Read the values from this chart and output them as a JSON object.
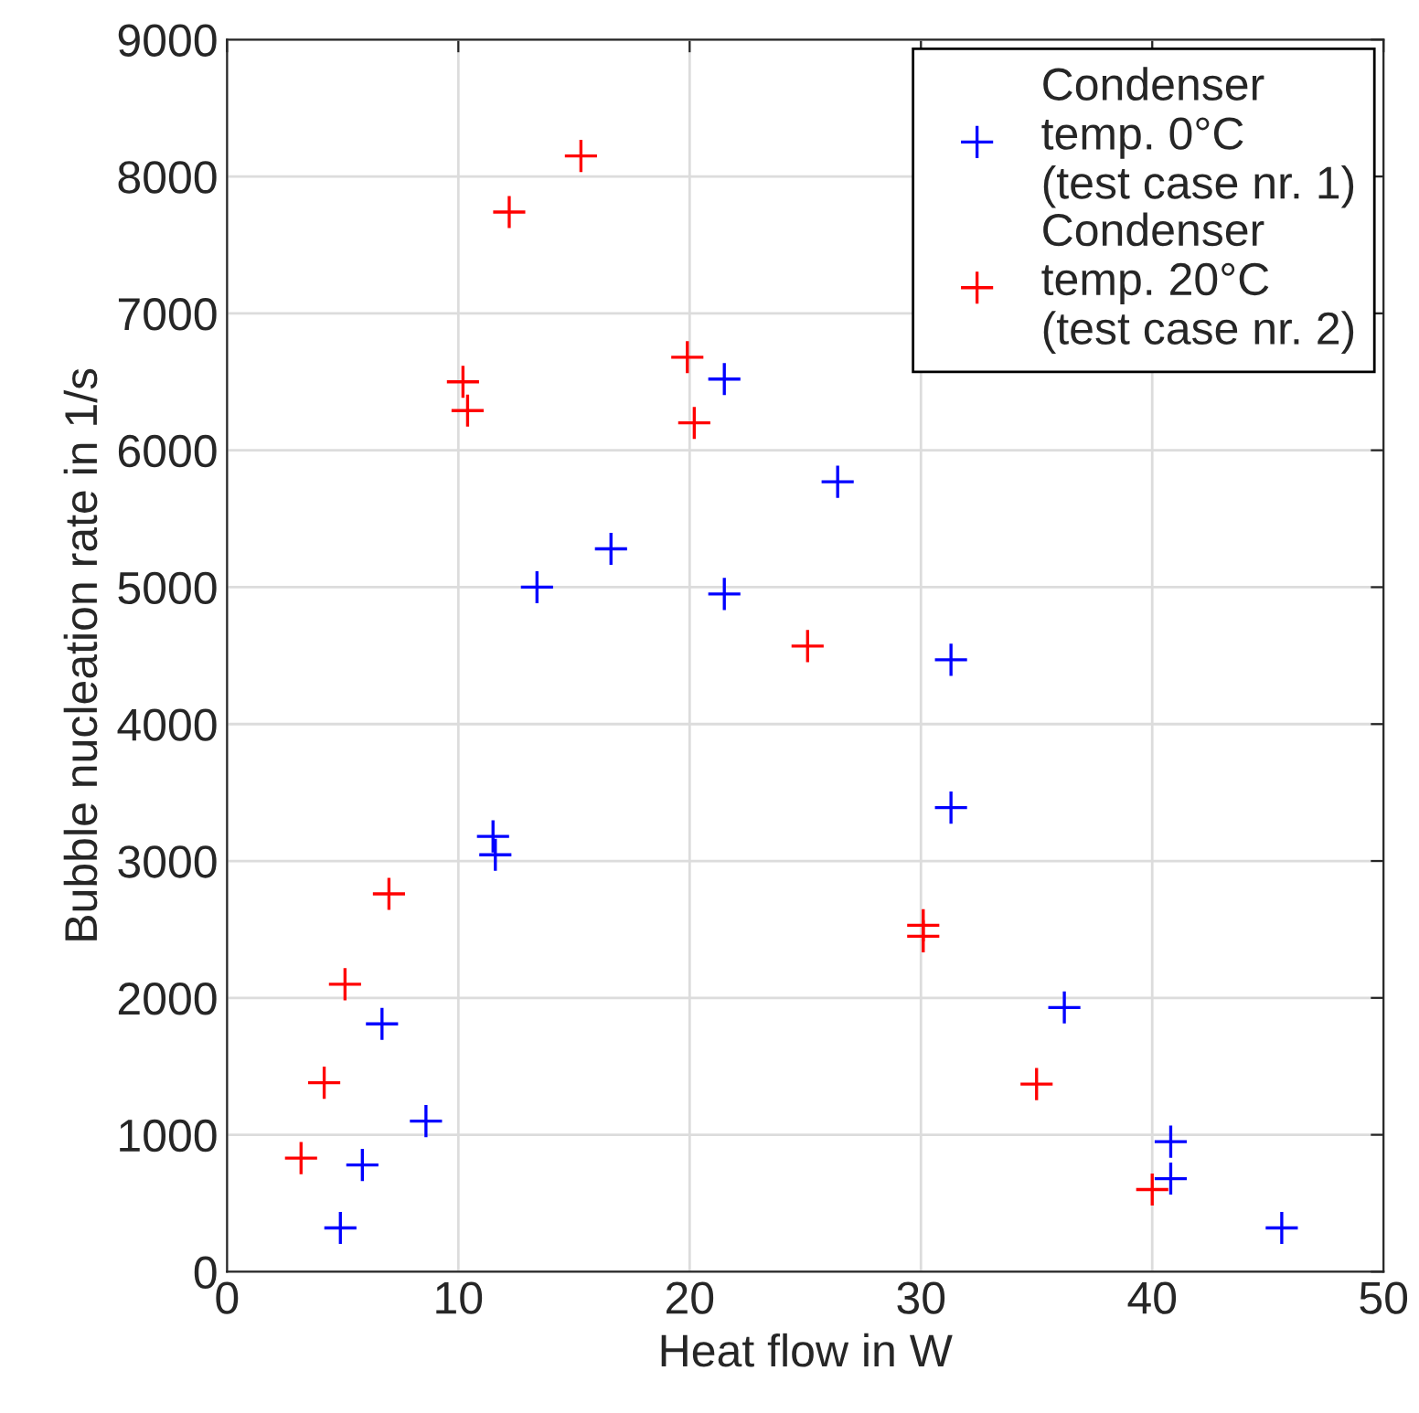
{
  "chart_data": {
    "type": "scatter",
    "xlabel": "Heat flow in W",
    "ylabel": "Bubble nucleation rate in 1/s",
    "xlim": [
      0,
      50
    ],
    "xticks": [
      0,
      10,
      20,
      30,
      40,
      50
    ],
    "ylim": [
      0,
      9000
    ],
    "yticks": [
      0,
      1000,
      2000,
      3000,
      4000,
      5000,
      6000,
      7000,
      8000,
      9000
    ],
    "grid": true,
    "legend": "top right",
    "marker": "cross",
    "series": [
      {
        "name": "Condenser\ntemp. 0°C\n(test case nr. 1)",
        "color": "#0000ff",
        "x": [
          4.9,
          5.85,
          6.7,
          8.6,
          11.5,
          11.6,
          13.4,
          16.6,
          21.5,
          21.5,
          26.4,
          31.3,
          31.3,
          36.2,
          40.8,
          40.8,
          45.6
        ],
        "values": [
          320,
          780,
          1810,
          1100,
          3180,
          3045,
          5000,
          5280,
          6520,
          4950,
          5770,
          4470,
          3390,
          1930,
          950,
          680,
          320
        ]
      },
      {
        "name": "Condenser\ntemp. 20°C\n(test case nr. 2)",
        "color": "#ff0000",
        "x": [
          3.2,
          4.2,
          5.1,
          7.0,
          10.2,
          10.4,
          12.2,
          15.3,
          19.9,
          20.2,
          25.1,
          30.1,
          30.1,
          35.0,
          40.0
        ],
        "values": [
          830,
          1380,
          2100,
          2760,
          6500,
          6290,
          7740,
          8150,
          6680,
          6200,
          4570,
          2530,
          2450,
          1370,
          600
        ]
      }
    ]
  }
}
